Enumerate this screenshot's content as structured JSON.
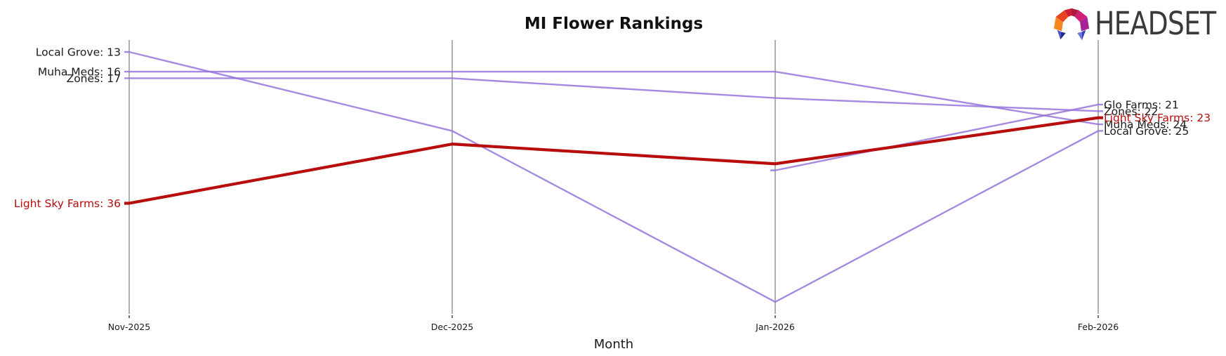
{
  "header": {
    "logo_text": "HEADSET"
  },
  "chart_data": {
    "type": "line",
    "chart_kind": "rank-bump-chart",
    "title": "MI Flower Rankings",
    "xlabel": "Month",
    "x": [
      "Nov-2025",
      "Dec-2025",
      "Jan-2026",
      "Feb-2026"
    ],
    "y_axis": {
      "metric": "brand rank (lower number = higher position)",
      "axis_visible": false,
      "top_rank_shown": 13,
      "bottom_rank_shown": 51
    },
    "grid": {
      "vertical_gridlines": true,
      "horizontal_gridlines": false
    },
    "legend": "inline start/end labels next to lines",
    "series": [
      {
        "name": "Local Grove",
        "style": "normal",
        "ranks": [
          13,
          25,
          51,
          25
        ],
        "start_label": "Local Grove: 13",
        "end_label": "Local Grove: 25"
      },
      {
        "name": "Muha Meds",
        "style": "normal",
        "ranks": [
          16,
          16,
          16,
          24
        ],
        "start_label": "Muha Meds: 16",
        "end_label": "Muha Meds: 24"
      },
      {
        "name": "Zones",
        "style": "normal",
        "ranks": [
          17,
          17,
          20,
          22
        ],
        "start_label": "Zones: 17",
        "end_label": "Zones: 22"
      },
      {
        "name": "Glo Farms",
        "style": "normal",
        "ranks": [
          null,
          null,
          31,
          21
        ],
        "start_label": null,
        "end_label": "Glo Farms: 21"
      },
      {
        "name": "Light Sky Farms",
        "style": "highlight",
        "ranks": [
          36,
          27,
          30,
          23
        ],
        "start_label": "Light Sky Farms: 36",
        "end_label": "Light Sky Farms: 23"
      }
    ],
    "colors": {
      "normal": "#9370DB",
      "highlight": "#b70d0d",
      "grid": "#b0b0b0",
      "tick": "#3a3a3a",
      "text": "#1a1a1a"
    }
  }
}
